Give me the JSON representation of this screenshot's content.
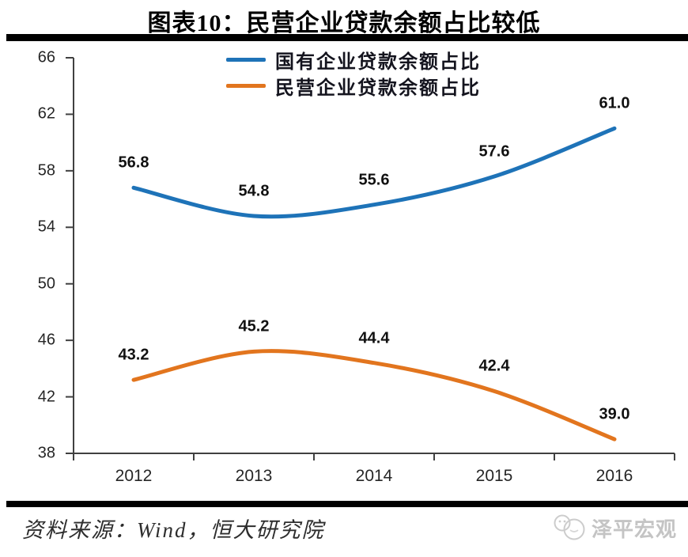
{
  "chart_data": {
    "type": "line",
    "title": "图表10：民营企业贷款余额占比较低",
    "categories": [
      "2012",
      "2013",
      "2014",
      "2015",
      "2016"
    ],
    "series": [
      {
        "name": "国有企业贷款余额占比",
        "color": "#1e73b8",
        "values": [
          56.8,
          54.8,
          55.6,
          57.6,
          61.0
        ]
      },
      {
        "name": "民营企业贷款余额占比",
        "color": "#e2751e",
        "values": [
          43.2,
          45.2,
          44.4,
          42.4,
          39.0
        ]
      }
    ],
    "ylim": [
      38,
      66
    ],
    "yticks": [
      38,
      42,
      46,
      50,
      54,
      58,
      62,
      66
    ],
    "axis_color": "#404040",
    "grid": false,
    "smooth": true,
    "data_labels": true,
    "label_decimals": 1,
    "legend_position": "top-center",
    "xlabel": "",
    "ylabel": ""
  },
  "footer": {
    "source": "资料来源：Wind，恒大研究院",
    "brand": "泽平宏观"
  }
}
